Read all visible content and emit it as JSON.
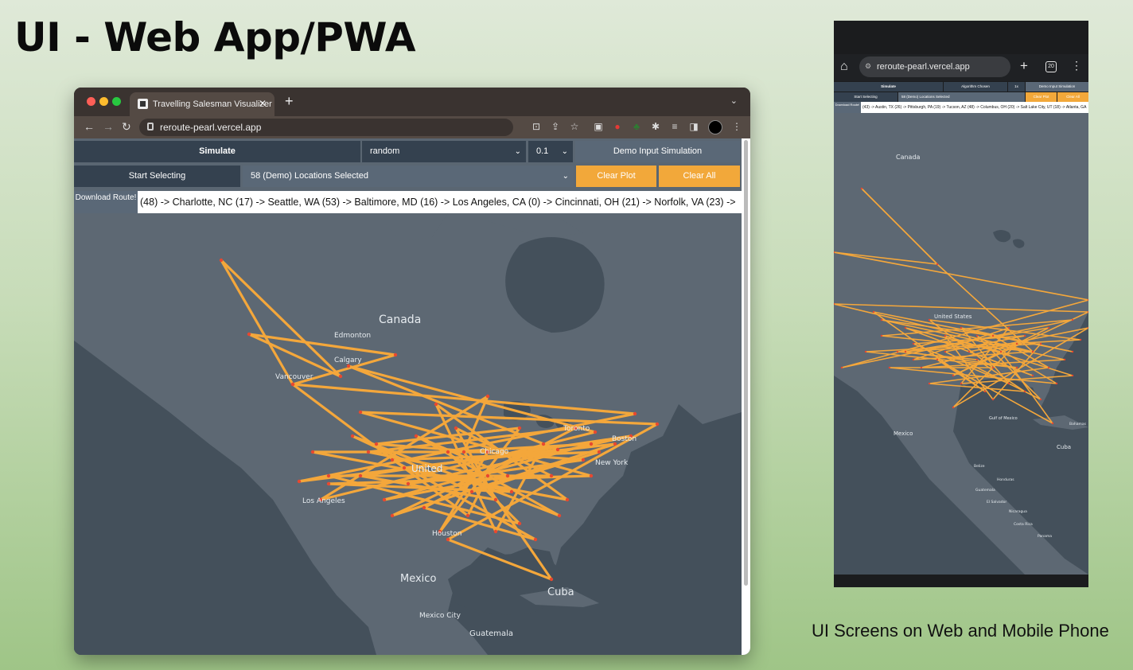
{
  "slide": {
    "title": "UI - Web App/PWA",
    "caption": "UI Screens on Web and Mobile Phone"
  },
  "browser": {
    "tab_title": "Travelling Salesman Visualizer",
    "url": "reroute-pearl.vercel.app"
  },
  "app": {
    "simulate_label": "Simulate",
    "algorithm_value": "random",
    "speed_value": "0.1",
    "demo_input_label": "Demo Input Simulation",
    "start_selecting_label": "Start Selecting",
    "locations_selected": "58 (Demo) Locations Selected",
    "clear_plot_label": "Clear Plot",
    "clear_all_label": "Clear All",
    "download_route_label": "Download Route!",
    "route_text": "(48) -> Charlotte, NC (17) -> Seattle, WA (53) -> Baltimore, MD (16) -> Los Angeles, CA (0) -> Cincinnati, OH (21) -> Norfolk, VA (23) ->"
  },
  "map_labels": {
    "canada": "Canada",
    "edmonton": "Edmonton",
    "calgary": "Calgary",
    "vancouver": "Vancouver",
    "united_states": "United",
    "chicago": "Chicago",
    "toronto": "Toronto",
    "boston": "Boston",
    "new_york": "New York",
    "los_angeles": "Los Angeles",
    "houston": "Houston",
    "mexico": "Mexico",
    "mexico_city": "Mexico City",
    "cuba": "Cuba",
    "guatemala": "Guatemala"
  },
  "phone": {
    "url": "reroute-pearl.vercel.app",
    "tab_count": "20",
    "simulate_label": "Simulate",
    "algorithm_value": "Algorithm Chosen",
    "speed_value": "1x",
    "demo_input_label": "Demo Input Simulation",
    "start_selecting_label": "Start Selecting",
    "locations_selected": "58 (Demo) Locations Selected",
    "clear_plot_label": "Clear Plot",
    "clear_all_label": "Clear All",
    "download_route_label": "Download Route!",
    "route_text": "(43) -> Austin, TX (26) -> Pittsburgh, PA (19) -> Tucson, AZ (48) -> Columbus, OH (20) -> Salt Lake City, UT (18) -> Atlanta, GA",
    "map_labels": {
      "canada": "Canada",
      "united_states": "United States",
      "mexico": "Mexico",
      "cuba": "Cuba",
      "guatemala": "Guatemala",
      "el_salvador": "El Salvador",
      "nicaragua": "Nicaragua",
      "costa_rica": "Costa Rica",
      "panama": "Panama",
      "belize": "Belize",
      "honduras": "Honduras",
      "gulf_of_mexico": "Gulf of Mexico",
      "bahamas": "Bahamas"
    }
  },
  "colors": {
    "route": "#f4a73b",
    "node": "#e8482f",
    "land": "#5d6873",
    "water": "#44505b",
    "control_dark": "#34414f",
    "control_accent": "#f2a83a"
  }
}
